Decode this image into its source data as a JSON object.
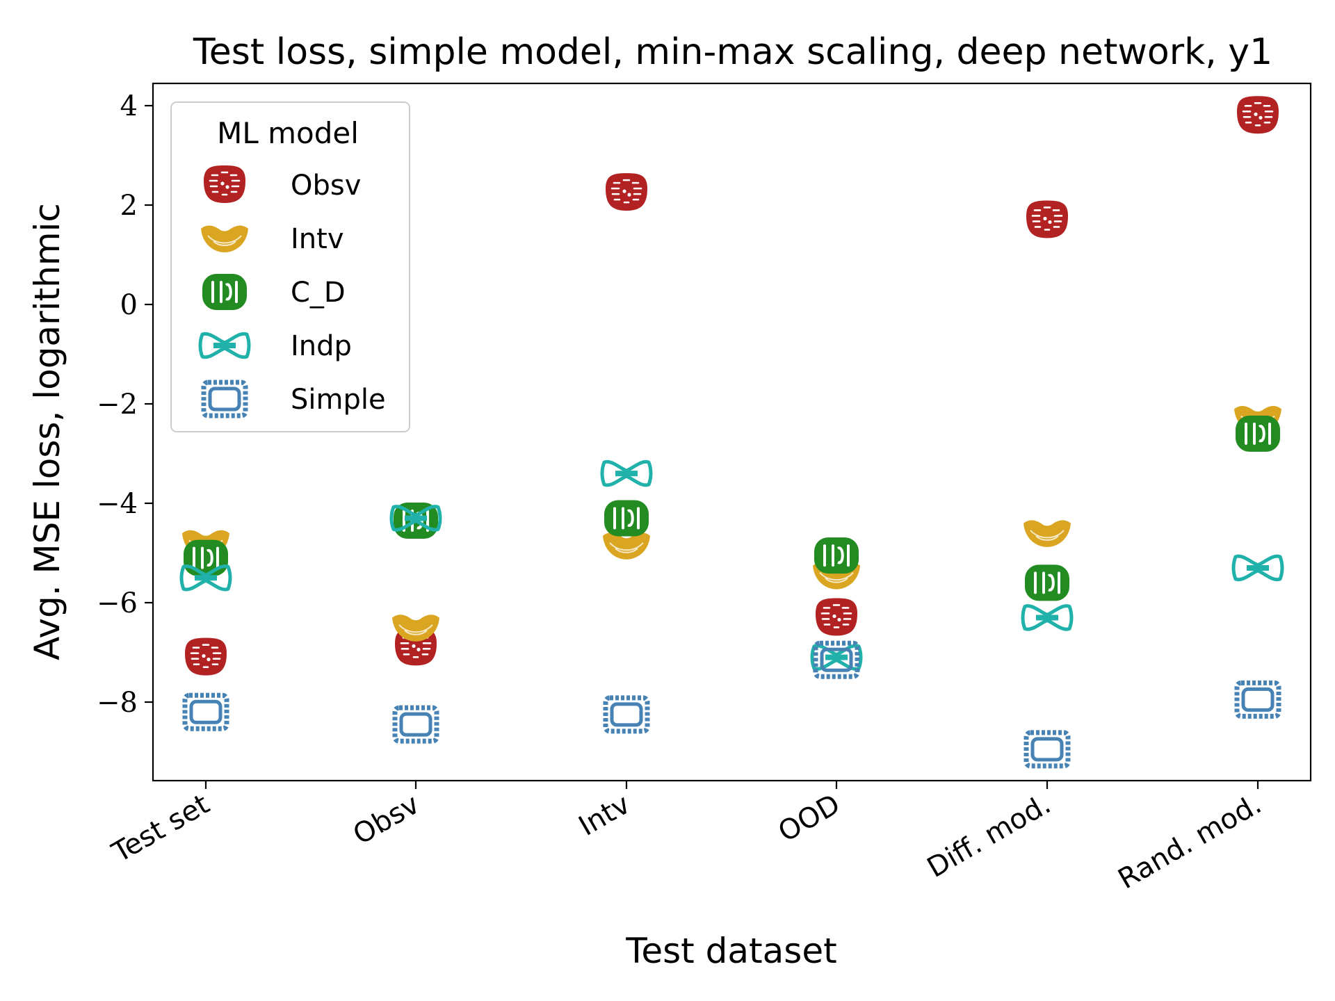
{
  "chart_data": {
    "type": "scatter",
    "title": "Test loss, simple model, min-max scaling, deep network, y1",
    "xlabel": "Test dataset",
    "ylabel": "Avg. MSE loss, logarithmic",
    "categories": [
      "Test set",
      "Obsv",
      "Intv",
      "OOD",
      "Diff. mod.",
      "Rand. mod."
    ],
    "ylim": [
      -9.6,
      4.4
    ],
    "yticks": [
      4,
      2,
      0,
      -2,
      -4,
      -6,
      -8
    ],
    "ytick_labels": [
      "4",
      "2",
      "0",
      "−2",
      "−4",
      "−6",
      "−8"
    ],
    "grid": false,
    "legend": {
      "title": "ML model",
      "placement": "top-left"
    },
    "series": [
      {
        "name": "Obsv",
        "marker": "fusilli-round",
        "color": "#b22222",
        "values": [
          -7.1,
          -6.9,
          2.25,
          -6.3,
          1.7,
          3.8
        ]
      },
      {
        "name": "Intv",
        "marker": "macaroni",
        "color": "#daa520",
        "values": [
          -4.8,
          -6.5,
          -4.85,
          -5.45,
          -4.6,
          -2.3
        ]
      },
      {
        "name": "C_D",
        "marker": "rigatoni",
        "color": "#228b22",
        "values": [
          -5.1,
          -4.35,
          -4.3,
          -5.05,
          -5.6,
          -2.6
        ]
      },
      {
        "name": "Indp",
        "marker": "farfalle",
        "color": "#20b2aa",
        "values": [
          -5.5,
          -4.3,
          -3.4,
          -7.1,
          -6.3,
          -5.3
        ]
      },
      {
        "name": "Simple",
        "marker": "ravioli",
        "color": "#4682b4",
        "values": [
          -8.2,
          -8.45,
          -8.25,
          -7.15,
          -8.95,
          -7.95
        ]
      }
    ]
  }
}
